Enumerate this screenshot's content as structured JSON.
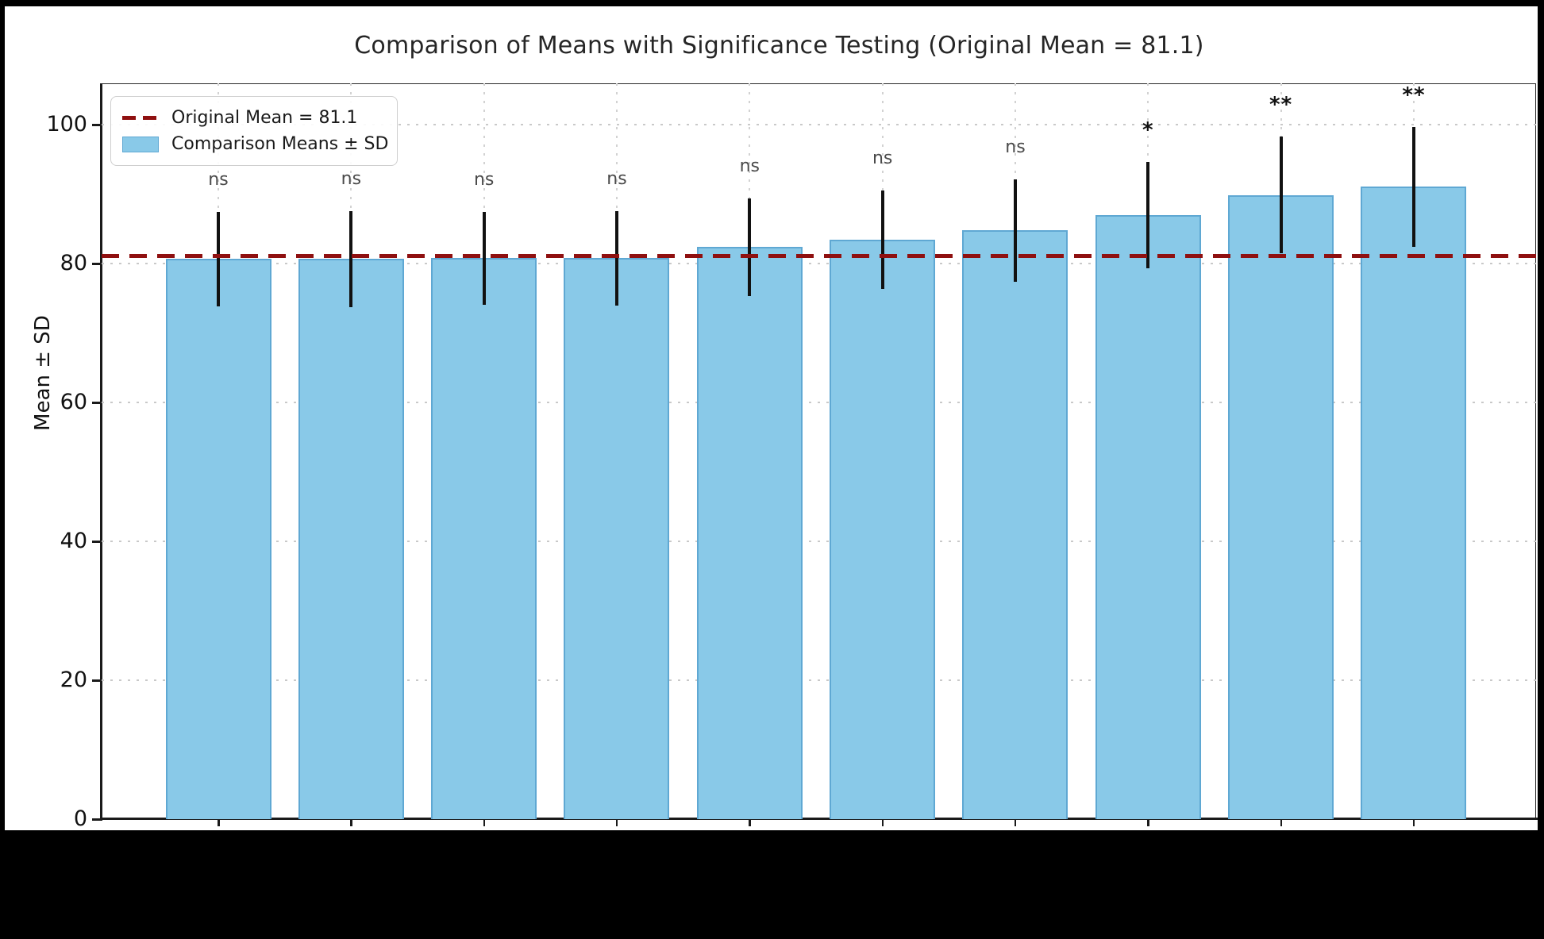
{
  "page": {
    "background_color": "#000000",
    "figure_background_color": "#ffffff"
  },
  "chart_data": {
    "type": "bar",
    "title": "Comparison of Means with Significance Testing (Original Mean = 81.1)",
    "ylabel": "Mean ± SD",
    "ylim": [
      0,
      106
    ],
    "yticks": [
      0,
      20,
      40,
      60,
      80,
      100
    ],
    "grid": {
      "style": "dotted",
      "horizontal": true,
      "vertical": true,
      "color": "#c9c9c9"
    },
    "x_tick_labels_visible": false,
    "reference_line": {
      "value": 81.1,
      "style": "dashed",
      "color": "#8f1010",
      "label": "Original Mean = 81.1"
    },
    "legend": {
      "position": "upper-left",
      "entries": [
        {
          "label": "Original Mean = 81.1",
          "swatch": "dashed-line",
          "color": "#8f1010"
        },
        {
          "label": "Comparison Means ± SD",
          "swatch": "patch",
          "color": "#89c9e8"
        }
      ]
    },
    "bars": [
      {
        "mean": 80.7,
        "sd": 6.8,
        "significance": "ns"
      },
      {
        "mean": 80.7,
        "sd": 6.9,
        "significance": "ns"
      },
      {
        "mean": 80.8,
        "sd": 6.7,
        "significance": "ns"
      },
      {
        "mean": 80.8,
        "sd": 6.8,
        "significance": "ns"
      },
      {
        "mean": 82.4,
        "sd": 7.0,
        "significance": "ns"
      },
      {
        "mean": 83.5,
        "sd": 7.1,
        "significance": "ns"
      },
      {
        "mean": 84.8,
        "sd": 7.4,
        "significance": "ns"
      },
      {
        "mean": 87.0,
        "sd": 7.7,
        "significance": "*"
      },
      {
        "mean": 89.9,
        "sd": 8.4,
        "significance": "**"
      },
      {
        "mean": 91.1,
        "sd": 8.6,
        "significance": "**"
      }
    ],
    "colors": {
      "bar_fill": "#89c9e8",
      "bar_edge": "#5fa8d3",
      "error_bar": "#111111",
      "ns_label": "#4a4a4a",
      "star_label": "#111111",
      "axis_text": "#111111",
      "title_text": "#262626"
    }
  }
}
